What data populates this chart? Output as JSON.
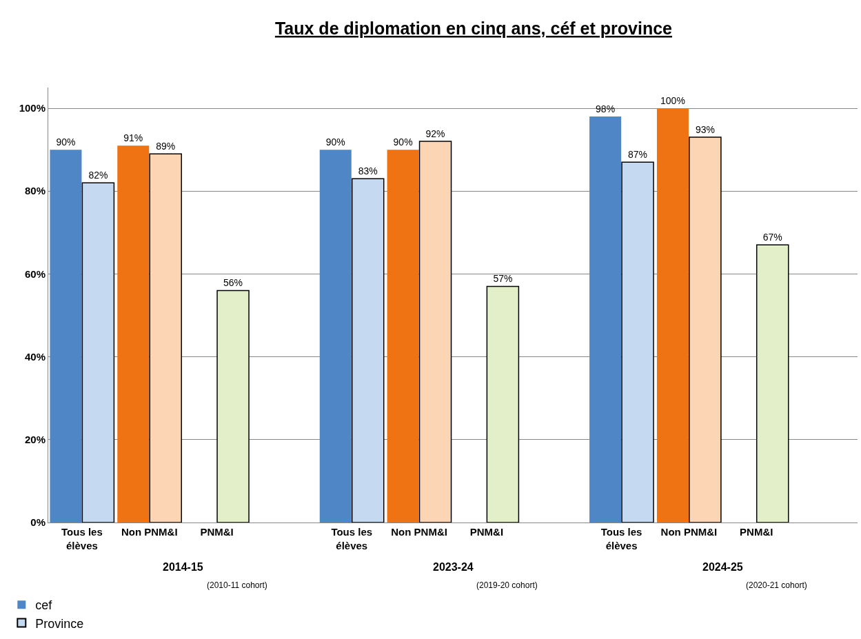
{
  "chart_data": {
    "type": "bar",
    "title": "Taux de diplomation en cinq ans, céf et province",
    "categories": [
      "Tous les élèves",
      "Non PNM&I",
      "PNM&I",
      null,
      "Tous les élèves",
      "Non PNM&I",
      "PNM&I",
      null,
      "Tous les élèves",
      "Non PNM&I",
      "PNM&I",
      null
    ],
    "series": [
      {
        "name": "cef",
        "colors": [
          "#4f86c6",
          "#ef7213",
          "#77933c",
          null,
          "#4f86c6",
          "#ef7213",
          "#77933c",
          null,
          "#4f86c6",
          "#ef7213",
          "#77933c",
          null
        ],
        "values": [
          90,
          91,
          null,
          null,
          90,
          90,
          null,
          null,
          98,
          100,
          null,
          null
        ],
        "value_labels": [
          "90%",
          "91%",
          null,
          null,
          "90%",
          "90%",
          null,
          null,
          "98%",
          "100%",
          null,
          null
        ]
      },
      {
        "name": "Province",
        "colors": [
          "#c5d9f1",
          "#fcd5b4",
          "#e2efc9",
          null,
          "#c5d9f1",
          "#fcd5b4",
          "#e2efc9",
          null,
          "#c5d9f1",
          "#fcd5b4",
          "#e2efc9",
          null
        ],
        "values": [
          82,
          89,
          56,
          null,
          83,
          92,
          57,
          null,
          87,
          93,
          67,
          null
        ],
        "value_labels": [
          "82%",
          "89%",
          "56%",
          null,
          "83%",
          "92%",
          "57%",
          null,
          "87%",
          "93%",
          "67%",
          null
        ]
      }
    ],
    "ylim": [
      0,
      105
    ],
    "yticks": [
      {
        "value": 0,
        "label": "0%"
      },
      {
        "value": 20,
        "label": "20%"
      },
      {
        "value": 40,
        "label": "40%"
      },
      {
        "value": 60,
        "label": "60%"
      },
      {
        "value": 80,
        "label": "80%"
      },
      {
        "value": 100,
        "label": "100%"
      }
    ],
    "grid": "y",
    "legend": "bottom left",
    "annotations": [
      "2014-15",
      "(2010-11 cohort)",
      "2023-24",
      "(2019-20 cohort)",
      "2024-25",
      "(2020-21 cohort)"
    ]
  }
}
